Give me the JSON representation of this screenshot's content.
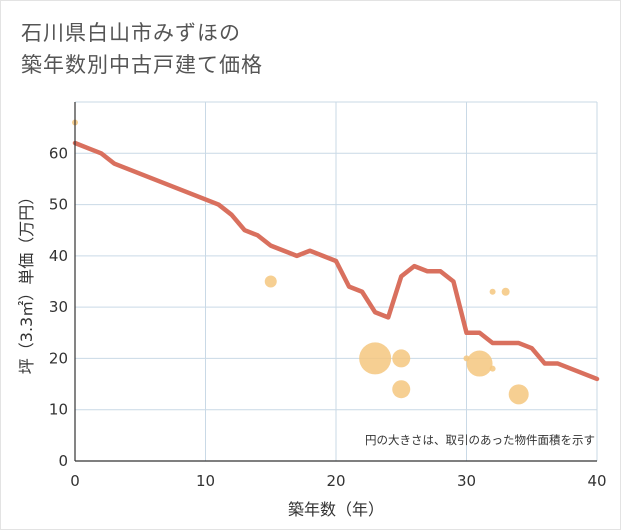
{
  "title": {
    "line1": "石川県白山市みずほの",
    "line2": "築年数別中古戸建て価格"
  },
  "chart_data": {
    "type": "scatter+line",
    "xlabel": "築年数（年）",
    "ylabel": "坪（3.3㎡）単価（万円）",
    "xlim": [
      0,
      40
    ],
    "ylim": [
      0,
      70
    ],
    "xticks": [
      0,
      10,
      20,
      30,
      40
    ],
    "yticks": [
      0,
      10,
      20,
      30,
      40,
      50,
      60
    ],
    "grid": true,
    "note": "円の大きさは、取引のあった物件面積を示す",
    "colors": {
      "line": "#d9705e",
      "bubble": "#f5c77f",
      "grid": "#c9d9e6",
      "axis": "#333333"
    },
    "trend_line": {
      "name": "trend",
      "x": [
        0,
        1,
        2,
        3,
        4,
        5,
        6,
        7,
        8,
        9,
        10,
        11,
        12,
        13,
        14,
        15,
        16,
        17,
        18,
        19,
        20,
        21,
        22,
        23,
        24,
        25,
        26,
        27,
        28,
        29,
        30,
        31,
        32,
        33,
        34,
        35,
        36,
        37,
        38,
        39,
        40
      ],
      "y": [
        62,
        61,
        60,
        58,
        57,
        56,
        55,
        54,
        53,
        52,
        51,
        50,
        48,
        45,
        44,
        42,
        41,
        40,
        41,
        40,
        39,
        34,
        33,
        29,
        28,
        36,
        38,
        37,
        37,
        35,
        25,
        25,
        23,
        23,
        23,
        22,
        19,
        19,
        18,
        17,
        16
      ]
    },
    "bubbles": [
      {
        "x": 0,
        "y": 66,
        "size": 3
      },
      {
        "x": 15,
        "y": 35,
        "size": 6
      },
      {
        "x": 23,
        "y": 20,
        "size": 16
      },
      {
        "x": 25,
        "y": 20,
        "size": 9
      },
      {
        "x": 25,
        "y": 14,
        "size": 9
      },
      {
        "x": 30,
        "y": 20,
        "size": 3
      },
      {
        "x": 31,
        "y": 19,
        "size": 13
      },
      {
        "x": 32,
        "y": 33,
        "size": 3
      },
      {
        "x": 32,
        "y": 18,
        "size": 3
      },
      {
        "x": 33,
        "y": 33,
        "size": 4
      },
      {
        "x": 34,
        "y": 13,
        "size": 10
      }
    ]
  }
}
